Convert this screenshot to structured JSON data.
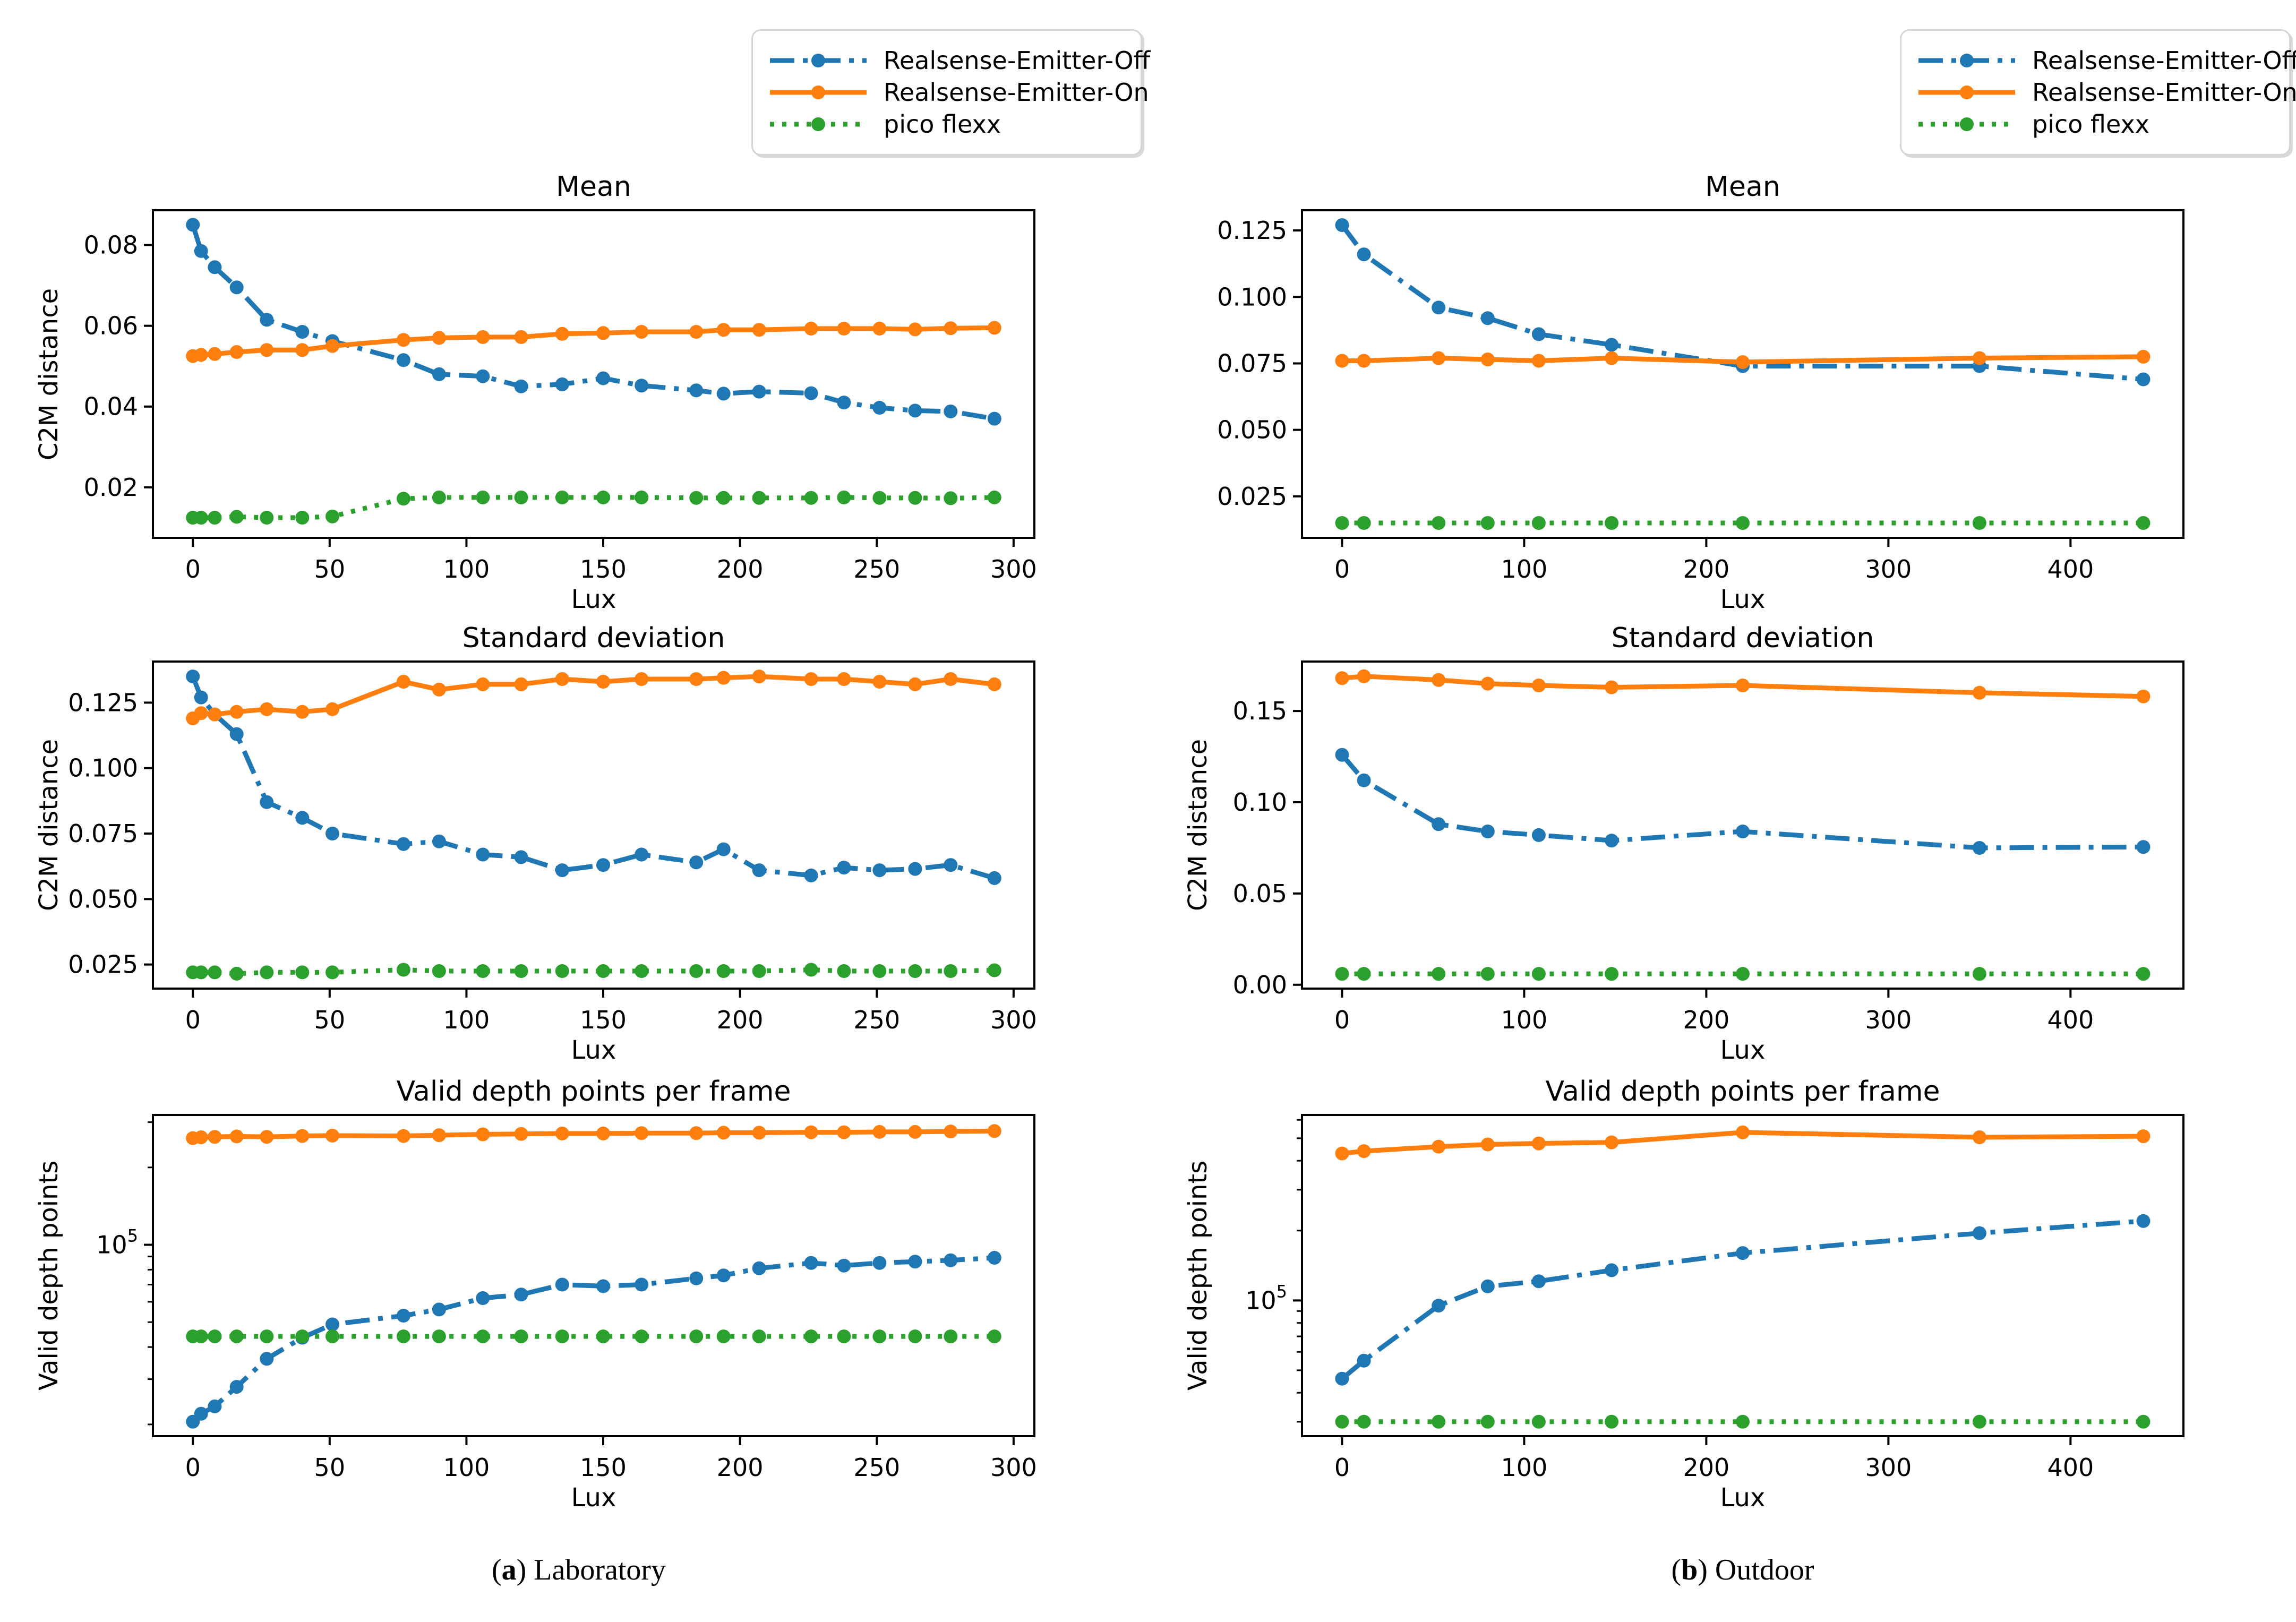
{
  "figure": {
    "legend": {
      "items": [
        {
          "label": "Realsense-Emitter-Off",
          "color": "#1f77b4",
          "style": "dashdot"
        },
        {
          "label": "Realsense-Emitter-On",
          "color": "#ff7f0e",
          "style": "solid"
        },
        {
          "label": "pico flexx",
          "color": "#2ca02c",
          "style": "dotted"
        }
      ]
    },
    "captions": [
      {
        "open": "(",
        "letter": "a",
        "close": ")",
        "text": "Laboratory"
      },
      {
        "open": "(",
        "letter": "b",
        "close": ")",
        "text": "Outdoor"
      }
    ]
  },
  "chart_data": [
    {
      "id": "laboratory-mean",
      "type": "line",
      "title": "Mean",
      "xlabel": "Lux",
      "ylabel": "C2M distance",
      "yscale": "linear",
      "xlim": [
        -14.6,
        307.6
      ],
      "ylim": [
        0.0075,
        0.0886
      ],
      "xticks": [
        0,
        50,
        100,
        150,
        200,
        250,
        300
      ],
      "yticks": [
        {
          "v": 0.02,
          "label": "0.02"
        },
        {
          "v": 0.04,
          "label": "0.04"
        },
        {
          "v": 0.06,
          "label": "0.06"
        },
        {
          "v": 0.08,
          "label": "0.08"
        }
      ],
      "x": [
        0,
        3,
        8,
        16,
        27,
        40,
        51,
        77,
        90,
        106,
        120,
        135,
        150,
        164,
        184,
        194,
        207,
        226,
        238,
        251,
        264,
        277,
        293
      ],
      "series": [
        {
          "name": "Realsense-Emitter-Off",
          "color": "#1f77b4",
          "style": "dashdot",
          "values": [
            0.085,
            0.0785,
            0.0745,
            0.0695,
            0.0615,
            0.0585,
            0.0562,
            0.0515,
            0.048,
            0.0475,
            0.045,
            0.0455,
            0.047,
            0.0452,
            0.044,
            0.0432,
            0.0437,
            0.0433,
            0.041,
            0.0397,
            0.039,
            0.0388,
            0.037
          ]
        },
        {
          "name": "Realsense-Emitter-On",
          "color": "#ff7f0e",
          "style": "solid",
          "values": [
            0.0525,
            0.0528,
            0.053,
            0.0535,
            0.054,
            0.054,
            0.055,
            0.0565,
            0.057,
            0.0572,
            0.0572,
            0.058,
            0.0582,
            0.0585,
            0.0585,
            0.059,
            0.059,
            0.0593,
            0.0593,
            0.0593,
            0.0591,
            0.0594,
            0.0595
          ]
        },
        {
          "name": "pico flexx",
          "color": "#2ca02c",
          "style": "dotted",
          "values": [
            0.0125,
            0.0125,
            0.0125,
            0.0127,
            0.0125,
            0.0125,
            0.0128,
            0.0172,
            0.0175,
            0.0175,
            0.0175,
            0.0175,
            0.0175,
            0.0175,
            0.0174,
            0.0174,
            0.0174,
            0.0174,
            0.0175,
            0.0174,
            0.0174,
            0.0173,
            0.0175
          ]
        }
      ]
    },
    {
      "id": "outdoor-mean",
      "type": "line",
      "title": "Mean",
      "xlabel": "Lux",
      "ylabel": "",
      "yscale": "linear",
      "xlim": [
        -22,
        462
      ],
      "ylim": [
        0.0094,
        0.1326
      ],
      "xticks": [
        0,
        100,
        200,
        300,
        400
      ],
      "yticks": [
        {
          "v": 0.025,
          "label": "0.025"
        },
        {
          "v": 0.05,
          "label": "0.050"
        },
        {
          "v": 0.075,
          "label": "0.075"
        },
        {
          "v": 0.1,
          "label": "0.100"
        },
        {
          "v": 0.125,
          "label": "0.125"
        }
      ],
      "x": [
        0,
        12,
        53,
        80,
        108,
        148,
        220,
        350,
        440
      ],
      "series": [
        {
          "name": "Realsense-Emitter-Off",
          "color": "#1f77b4",
          "style": "dashdot",
          "values": [
            0.127,
            0.116,
            0.096,
            0.092,
            0.086,
            0.082,
            0.074,
            0.074,
            0.069
          ]
        },
        {
          "name": "Realsense-Emitter-On",
          "color": "#ff7f0e",
          "style": "solid",
          "values": [
            0.076,
            0.076,
            0.077,
            0.0765,
            0.076,
            0.077,
            0.0755,
            0.077,
            0.0775
          ]
        },
        {
          "name": "pico flexx",
          "color": "#2ca02c",
          "style": "dotted",
          "values": [
            0.015,
            0.015,
            0.015,
            0.015,
            0.015,
            0.015,
            0.015,
            0.015,
            0.015
          ]
        }
      ]
    },
    {
      "id": "laboratory-standard-deviation",
      "type": "line",
      "title": "Standard deviation",
      "xlabel": "Lux",
      "ylabel": "C2M distance",
      "yscale": "linear",
      "xlim": [
        -14.6,
        307.6
      ],
      "ylim": [
        0.0158,
        0.1407
      ],
      "xticks": [
        0,
        50,
        100,
        150,
        200,
        250,
        300
      ],
      "yticks": [
        {
          "v": 0.025,
          "label": "0.025"
        },
        {
          "v": 0.05,
          "label": "0.050"
        },
        {
          "v": 0.075,
          "label": "0.075"
        },
        {
          "v": 0.1,
          "label": "0.100"
        },
        {
          "v": 0.125,
          "label": "0.125"
        }
      ],
      "x": [
        0,
        3,
        8,
        16,
        27,
        40,
        51,
        77,
        90,
        106,
        120,
        135,
        150,
        164,
        184,
        194,
        207,
        226,
        238,
        251,
        264,
        277,
        293
      ],
      "series": [
        {
          "name": "Realsense-Emitter-Off",
          "color": "#1f77b4",
          "style": "dashdot",
          "values": [
            0.135,
            0.127,
            0.1205,
            0.113,
            0.087,
            0.081,
            0.075,
            0.071,
            0.072,
            0.067,
            0.066,
            0.061,
            0.063,
            0.067,
            0.064,
            0.069,
            0.061,
            0.059,
            0.062,
            0.061,
            0.0615,
            0.063,
            0.058
          ]
        },
        {
          "name": "Realsense-Emitter-On",
          "color": "#ff7f0e",
          "style": "solid",
          "values": [
            0.119,
            0.121,
            0.1205,
            0.1215,
            0.1225,
            0.1215,
            0.1225,
            0.133,
            0.13,
            0.132,
            0.132,
            0.134,
            0.133,
            0.134,
            0.134,
            0.1345,
            0.135,
            0.134,
            0.134,
            0.133,
            0.132,
            0.134,
            0.132
          ]
        },
        {
          "name": "pico flexx",
          "color": "#2ca02c",
          "style": "dotted",
          "values": [
            0.022,
            0.022,
            0.022,
            0.0215,
            0.022,
            0.022,
            0.022,
            0.023,
            0.0225,
            0.0225,
            0.0225,
            0.0225,
            0.0225,
            0.0225,
            0.0225,
            0.0225,
            0.0225,
            0.023,
            0.0225,
            0.0225,
            0.0225,
            0.0225,
            0.0228
          ]
        }
      ]
    },
    {
      "id": "outdoor-standard-deviation",
      "type": "line",
      "title": "Standard deviation",
      "xlabel": "Lux",
      "ylabel": "C2M distance",
      "yscale": "linear",
      "xlim": [
        -22,
        462
      ],
      "ylim": [
        -0.0021,
        0.1771
      ],
      "xticks": [
        0,
        100,
        200,
        300,
        400
      ],
      "yticks": [
        {
          "v": 0.0,
          "label": "0.00"
        },
        {
          "v": 0.05,
          "label": "0.05"
        },
        {
          "v": 0.1,
          "label": "0.10"
        },
        {
          "v": 0.15,
          "label": "0.15"
        }
      ],
      "x": [
        0,
        12,
        53,
        80,
        108,
        148,
        220,
        350,
        440
      ],
      "series": [
        {
          "name": "Realsense-Emitter-Off",
          "color": "#1f77b4",
          "style": "dashdot",
          "values": [
            0.126,
            0.112,
            0.088,
            0.084,
            0.082,
            0.079,
            0.084,
            0.075,
            0.0755
          ]
        },
        {
          "name": "Realsense-Emitter-On",
          "color": "#ff7f0e",
          "style": "solid",
          "values": [
            0.168,
            0.169,
            0.167,
            0.165,
            0.164,
            0.163,
            0.164,
            0.16,
            0.158
          ]
        },
        {
          "name": "pico flexx",
          "color": "#2ca02c",
          "style": "dotted",
          "values": [
            0.006,
            0.006,
            0.006,
            0.006,
            0.006,
            0.006,
            0.006,
            0.006,
            0.006
          ]
        }
      ]
    },
    {
      "id": "laboratory-valid-depth-points",
      "type": "line",
      "title": "Valid depth points per frame",
      "xlabel": "Lux",
      "ylabel": "Valid depth points",
      "yscale": "log",
      "xlim": [
        -14.6,
        307.6
      ],
      "ylim": [
        18000,
        320000
      ],
      "xticks": [
        0,
        50,
        100,
        150,
        200,
        250,
        300
      ],
      "yticks": [
        {
          "v": 100000,
          "label": "10",
          "sup": "5"
        }
      ],
      "yticks_minor": [
        20000,
        30000,
        40000,
        50000,
        60000,
        70000,
        80000,
        90000,
        200000,
        300000
      ],
      "x": [
        0,
        3,
        8,
        16,
        27,
        40,
        51,
        77,
        90,
        106,
        120,
        135,
        150,
        164,
        184,
        194,
        207,
        226,
        238,
        251,
        264,
        277,
        293
      ],
      "series": [
        {
          "name": "Realsense-Emitter-Off",
          "color": "#1f77b4",
          "style": "dashdot",
          "values": [
            20500,
            22000,
            23500,
            28000,
            36000,
            43500,
            49000,
            53000,
            56000,
            62000,
            64000,
            70000,
            69000,
            70000,
            74000,
            76000,
            81000,
            85000,
            83000,
            85000,
            86000,
            87000,
            89000
          ]
        },
        {
          "name": "Realsense-Emitter-On",
          "color": "#ff7f0e",
          "style": "solid",
          "values": [
            260000,
            262000,
            263000,
            264000,
            263000,
            265000,
            266000,
            265000,
            267000,
            269000,
            270000,
            271000,
            271000,
            272000,
            272000,
            273000,
            273000,
            274000,
            274000,
            275000,
            275000,
            276000,
            277000
          ]
        },
        {
          "name": "pico flexx",
          "color": "#2ca02c",
          "style": "dotted",
          "values": [
            44000,
            44000,
            44000,
            44000,
            44000,
            44000,
            44000,
            44000,
            44000,
            44000,
            44000,
            44000,
            44000,
            44000,
            44000,
            44000,
            44000,
            44000,
            44000,
            44000,
            44000,
            44000,
            44000
          ]
        }
      ]
    },
    {
      "id": "outdoor-valid-depth-points",
      "type": "line",
      "title": "Valid depth points per frame",
      "xlabel": "Lux",
      "ylabel": "Valid depth points",
      "yscale": "log",
      "xlim": [
        -22,
        462
      ],
      "ylim": [
        26000,
        630000
      ],
      "xticks": [
        0,
        100,
        200,
        300,
        400
      ],
      "yticks": [
        {
          "v": 100000,
          "label": "10",
          "sup": "5"
        }
      ],
      "yticks_minor": [
        30000,
        40000,
        50000,
        60000,
        70000,
        80000,
        90000,
        200000,
        300000,
        400000,
        500000,
        600000
      ],
      "x": [
        0,
        12,
        53,
        80,
        108,
        148,
        220,
        350,
        440
      ],
      "series": [
        {
          "name": "Realsense-Emitter-Off",
          "color": "#1f77b4",
          "style": "dashdot",
          "values": [
            46000,
            55000,
            95000,
            115000,
            121000,
            135000,
            160000,
            195000,
            220000
          ]
        },
        {
          "name": "Realsense-Emitter-On",
          "color": "#ff7f0e",
          "style": "solid",
          "values": [
            430000,
            440000,
            460000,
            470000,
            475000,
            480000,
            530000,
            505000,
            510000
          ]
        },
        {
          "name": "pico flexx",
          "color": "#2ca02c",
          "style": "dotted",
          "values": [
            30000,
            30000,
            30000,
            30000,
            30000,
            30000,
            30000,
            30000,
            30000
          ]
        }
      ]
    }
  ]
}
